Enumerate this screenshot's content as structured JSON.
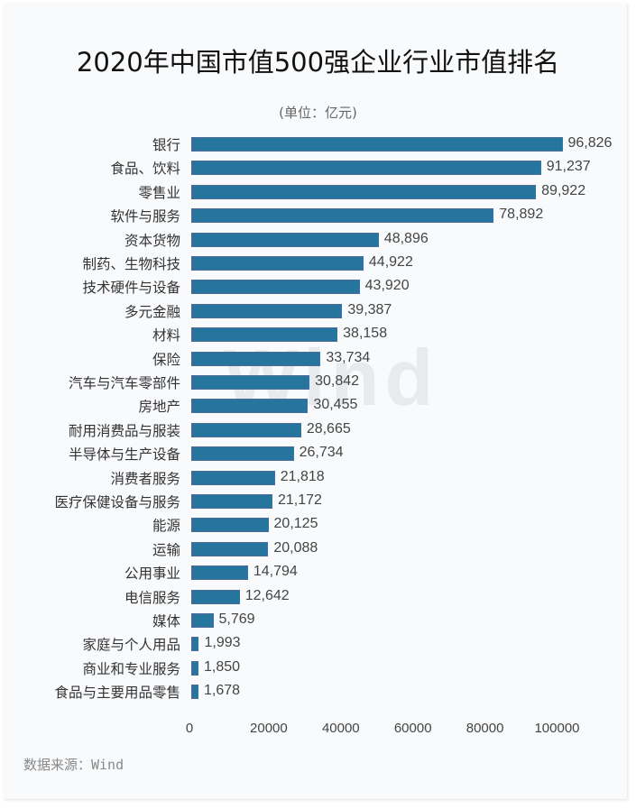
{
  "chart_data": {
    "type": "bar",
    "orientation": "horizontal",
    "title": "2020年中国市值500强企业行业市值排名",
    "subtitle": "(单位：亿元)",
    "xlabel": "",
    "ylabel": "",
    "xlim": [
      0,
      100000
    ],
    "xticks": [
      "0",
      "20000",
      "40000",
      "60000",
      "80000",
      "100000"
    ],
    "grid": false,
    "legend": null,
    "bar_color": "#25759f",
    "categories": [
      "银行",
      "食品、饮料",
      "零售业",
      "软件与服务",
      "资本货物",
      "制药、生物科技",
      "技术硬件与设备",
      "多元金融",
      "材料",
      "保险",
      "汽车与汽车零部件",
      "房地产",
      "耐用消费品与服装",
      "半导体与生产设备",
      "消费者服务",
      "医疗保健设备与服务",
      "能源",
      "运输",
      "公用事业",
      "电信服务",
      "媒体",
      "家庭与个人用品",
      "商业和专业服务",
      "食品与主要用品零售"
    ],
    "values": [
      96826,
      91237,
      89922,
      78892,
      48896,
      44922,
      43920,
      39387,
      38158,
      33734,
      30842,
      30455,
      28665,
      26734,
      21818,
      21172,
      20125,
      20088,
      14794,
      12642,
      5769,
      1993,
      1850,
      1678
    ],
    "value_labels": [
      "96,826",
      "91,237",
      "89,922",
      "78,892",
      "48,896",
      "44,922",
      "43,920",
      "39,387",
      "38,158",
      "33,734",
      "30,842",
      "30,455",
      "28,665",
      "26,734",
      "21,818",
      "21,172",
      "20,125",
      "20,088",
      "14,794",
      "12,642",
      "5,769",
      "1,993",
      "1,850",
      "1,678"
    ],
    "source": "数据来源：Wind",
    "watermark": "Wind"
  },
  "header": {
    "title": "2020年中国市值500强企业行业市值排名",
    "unit": "(单位：亿元)"
  },
  "footer": {
    "source": "数据来源：Wind"
  },
  "watermark": "Wind"
}
